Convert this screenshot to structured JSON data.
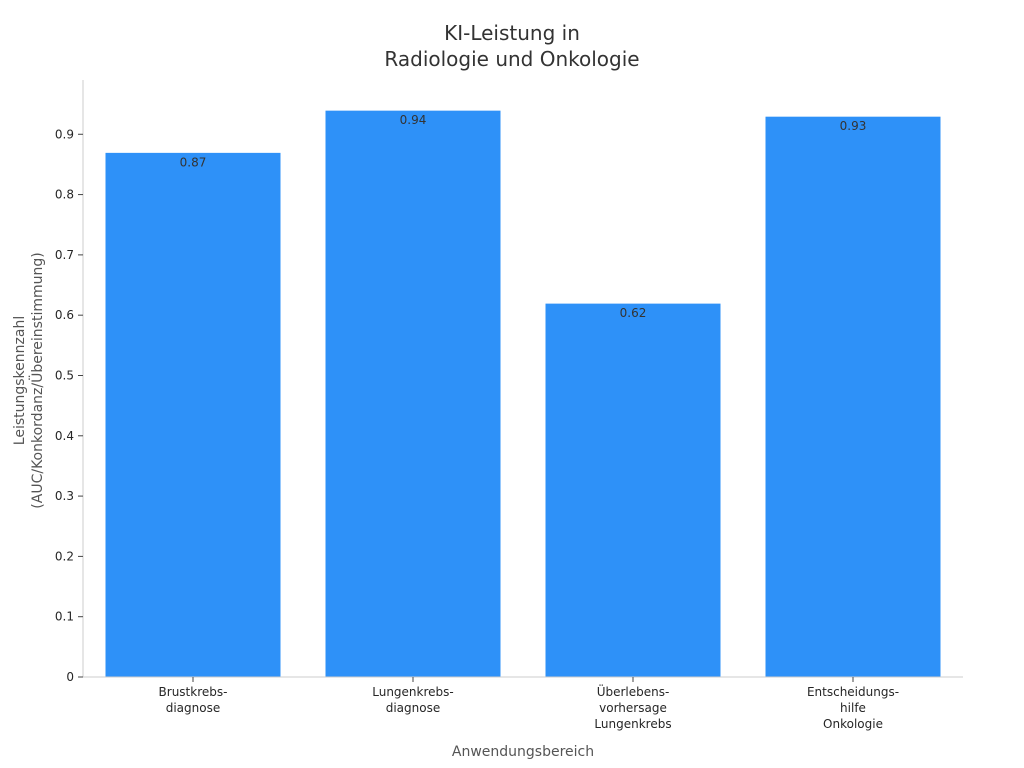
{
  "chart_data": {
    "type": "bar",
    "title": [
      "KI-Leistung in",
      "Radiologie und Onkologie"
    ],
    "xlabel": "Anwendungsbereich",
    "ylabel": [
      "Leistungskennzahl",
      "(AUC/Konkordanz/Übereinstimmung)"
    ],
    "categories": [
      [
        "Brustkrebs-",
        "diagnose"
      ],
      [
        "Lungenkrebs-",
        "diagnose"
      ],
      [
        "Überlebens-",
        "vorhersage",
        "Lungenkrebs"
      ],
      [
        "Entscheidungs-",
        "hilfe",
        "Onkologie"
      ]
    ],
    "values": [
      0.87,
      0.94,
      0.62,
      0.93
    ],
    "data_labels": [
      "0.87",
      "0.94",
      "0.62",
      "0.93"
    ],
    "yticks": [
      0,
      0.1,
      0.2,
      0.3,
      0.4,
      0.5,
      0.6,
      0.7,
      0.8,
      0.9
    ],
    "ytick_labels": [
      "0",
      "0.1",
      "0.2",
      "0.3",
      "0.4",
      "0.5",
      "0.6",
      "0.7",
      "0.8",
      "0.9"
    ],
    "ylim": [
      0,
      0.99
    ],
    "bar_color": "#2e91f8",
    "grid": false,
    "legend": "none"
  }
}
